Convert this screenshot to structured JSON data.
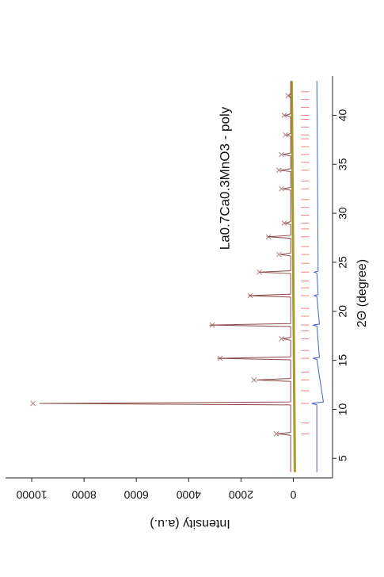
{
  "chart_data": {
    "type": "line",
    "title": "La0.7Ca0.3MnO3 - poly",
    "xlabel": "2Θ (degree)",
    "ylabel": "Intensity (a.u.)",
    "xlim": [
      3,
      44
    ],
    "ylim": [
      -1500,
      11000
    ],
    "xticks": [
      5,
      10,
      15,
      20,
      25,
      30,
      35,
      40
    ],
    "yticks": [
      0,
      2000,
      4000,
      6000,
      8000,
      10000
    ],
    "rotation": -90,
    "series": [
      {
        "style": "line",
        "color": "#a89a2a",
        "width": 3,
        "x": [
          3.6,
          43.5
        ],
        "values": [
          -60,
          60
        ]
      },
      {
        "style": "markers",
        "color": "#b08080",
        "x": [
          7.5,
          10.6,
          13.0,
          15.2,
          17.2,
          18.6,
          21.6,
          24.0,
          25.8,
          27.6,
          29.0,
          32.5,
          34.4,
          36.0,
          38.0,
          40.0,
          42.0
        ],
        "values": [
          650,
          9950,
          1500,
          2800,
          450,
          3100,
          1650,
          1300,
          550,
          950,
          350,
          450,
          550,
          450,
          300,
          350,
          200
        ]
      },
      {
        "style": "line",
        "color": "#8b4a4a",
        "width": 1,
        "x": [
          3.6,
          7.35,
          7.5,
          7.65,
          10.45,
          10.6,
          10.75,
          12.85,
          13.0,
          13.15,
          15.05,
          15.2,
          15.35,
          17.05,
          17.2,
          17.35,
          18.45,
          18.6,
          18.75,
          21.45,
          21.6,
          21.75,
          23.85,
          24.0,
          24.15,
          25.65,
          25.8,
          25.95,
          27.45,
          27.6,
          27.75,
          28.85,
          29.0,
          29.15,
          32.35,
          32.5,
          32.65,
          34.25,
          34.4,
          34.55,
          35.85,
          36.0,
          36.15,
          37.85,
          38.0,
          38.15,
          39.85,
          40.0,
          40.15,
          41.85,
          42.0,
          42.15,
          43.5
        ],
        "values": [
          100,
          100,
          600,
          100,
          100,
          9700,
          100,
          100,
          1400,
          100,
          100,
          2900,
          100,
          100,
          400,
          100,
          100,
          3200,
          100,
          100,
          1700,
          100,
          100,
          1300,
          100,
          100,
          500,
          100,
          100,
          1000,
          100,
          100,
          300,
          100,
          100,
          400,
          100,
          100,
          500,
          100,
          100,
          400,
          100,
          100,
          250,
          100,
          100,
          300,
          100,
          100,
          150,
          100,
          100
        ]
      },
      {
        "style": "ticks",
        "color": "#f08080",
        "x": [
          7.5,
          8.6,
          10.6,
          11.9,
          13.0,
          13.8,
          15.2,
          16.0,
          17.2,
          18.0,
          18.6,
          19.5,
          20.3,
          21.6,
          22.4,
          23.1,
          24.0,
          24.9,
          25.8,
          26.6,
          27.6,
          28.4,
          29.0,
          29.8,
          30.6,
          31.4,
          32.5,
          33.3,
          34.4,
          35.2,
          36.0,
          36.8,
          37.6,
          38.0,
          38.8,
          39.6,
          40.0,
          40.8,
          41.6,
          42.4
        ],
        "values": [
          -450,
          -450,
          -450,
          -450,
          -450,
          -450,
          -450,
          -450,
          -450,
          -450,
          -450,
          -450,
          -450,
          -450,
          -450,
          -450,
          -450,
          -450,
          -450,
          -450,
          -450,
          -450,
          -450,
          -450,
          -450,
          -450,
          -450,
          -450,
          -450,
          -450,
          -450,
          -450,
          -450,
          -450,
          -450,
          -450,
          -450,
          -450,
          -450,
          -450
        ]
      },
      {
        "style": "line",
        "color": "#4a5bd0",
        "width": 1,
        "x": [
          3.6,
          10.45,
          10.6,
          10.75,
          15.1,
          15.2,
          15.3,
          18.5,
          18.6,
          18.7,
          21.5,
          21.6,
          21.7,
          23.9,
          24.0,
          24.1,
          43.5
        ],
        "values": [
          -900,
          -900,
          -700,
          -1150,
          -900,
          -750,
          -1000,
          -900,
          -750,
          -1000,
          -900,
          -800,
          -950,
          -900,
          -800,
          -950,
          -900
        ]
      }
    ]
  }
}
